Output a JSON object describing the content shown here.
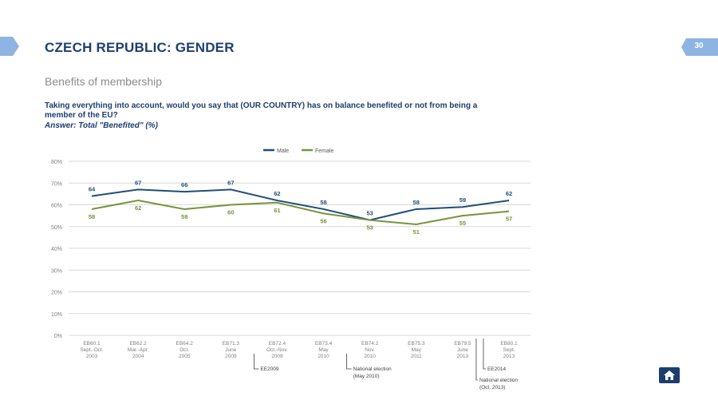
{
  "header": {
    "title": "CZECH REPUBLIC: GENDER",
    "page_number": "30",
    "subtitle": "Benefits of membership",
    "question": "Taking everything into account, would you say that (OUR COUNTRY) has on balance benefited or not from being a member of the EU?",
    "answer": "Answer: Total \"Benefited\" (%)"
  },
  "colors": {
    "brand": "#1c3f6e",
    "male": "#1f4e79",
    "female": "#77933c",
    "grid": "#d9d9d9",
    "tab": "#8eb4e3"
  },
  "icons": {
    "home": "home-icon",
    "left_tab": "arrow-tab-icon"
  },
  "chart_data": {
    "type": "line",
    "ylim": [
      0,
      80
    ],
    "yticks": [
      "0%",
      "10%",
      "20%",
      "30%",
      "40%",
      "50%",
      "60%",
      "70%",
      "80%"
    ],
    "categories": [
      [
        "EB60.1",
        "Sept.-Oct.",
        "2003"
      ],
      [
        "EB62.2",
        "Mar.-Apr.",
        "2004"
      ],
      [
        "EB64.2",
        "Oct.",
        "2005"
      ],
      [
        "EB71.3",
        "June",
        "2009"
      ],
      [
        "EB72.4",
        "Oct.-Nov.",
        "2009"
      ],
      [
        "EB73.4",
        "May",
        "2010"
      ],
      [
        "EB74.2",
        "Nov.",
        "2010"
      ],
      [
        "EB75.3",
        "May",
        "2011"
      ],
      [
        "EB79.5",
        "June",
        "2013"
      ],
      [
        "EB80.1",
        "Sept.",
        "2013"
      ]
    ],
    "series": [
      {
        "name": "Male",
        "values": [
          64,
          67,
          66,
          67,
          62,
          58,
          53,
          58,
          59,
          62
        ]
      },
      {
        "name": "Female",
        "values": [
          58,
          62,
          58,
          60,
          61,
          56,
          53,
          51,
          55,
          57
        ]
      }
    ],
    "legend_position": "top-center",
    "grid": true,
    "annotations": [
      {
        "lines": [
          "EE2009"
        ],
        "after_index": 3
      },
      {
        "lines": [
          "National election",
          "(May 2010)"
        ],
        "after_index": 5
      },
      {
        "lines": [
          "National election",
          "(Oct. 2013)"
        ],
        "after_index": 8
      },
      {
        "lines": [
          "EE2014"
        ],
        "after_index": 8
      }
    ]
  }
}
